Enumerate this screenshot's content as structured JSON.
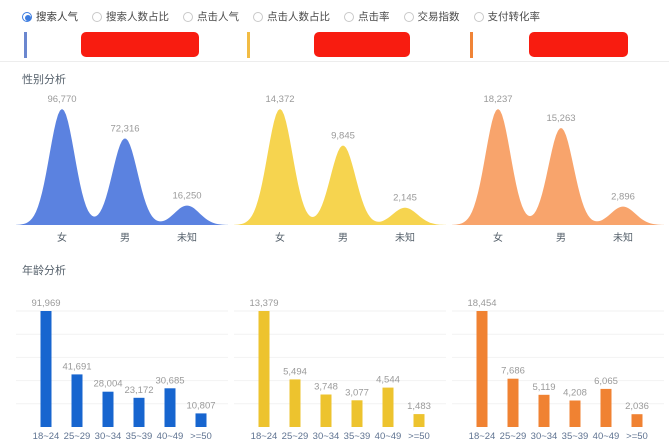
{
  "metrics_bar": {
    "options": [
      {
        "label": "搜索人气",
        "selected": true
      },
      {
        "label": "搜索人数占比",
        "selected": false
      },
      {
        "label": "点击人气",
        "selected": false
      },
      {
        "label": "点击人数占比",
        "selected": false
      },
      {
        "label": "点击率",
        "selected": false
      },
      {
        "label": "交易指数",
        "selected": false
      },
      {
        "label": "支付转化率",
        "selected": false
      }
    ]
  },
  "legend": {
    "redaction_color": "#f81c10",
    "items": [
      {
        "tick_color": "#6b87cf",
        "label_redacted": true
      },
      {
        "tick_color": "#f2bc44",
        "label_redacted": true
      },
      {
        "tick_color": "#f08437",
        "label_redacted": true
      }
    ]
  },
  "sections": {
    "gender": {
      "title": "性别分析"
    },
    "age": {
      "title": "年龄分析"
    }
  },
  "chart_data": [
    {
      "id": "gender-1",
      "type": "area",
      "title": "性别分析 - 系列1",
      "categories": [
        "女",
        "男",
        "未知"
      ],
      "values": [
        96770,
        72316,
        16250
      ],
      "value_labels": [
        "96,770",
        "72,316",
        "16,250"
      ],
      "color": "#5b82e0",
      "grid": false,
      "ylim": [
        0,
        100000
      ]
    },
    {
      "id": "gender-2",
      "type": "area",
      "title": "性别分析 - 系列2",
      "categories": [
        "女",
        "男",
        "未知"
      ],
      "values": [
        14372,
        9845,
        2145
      ],
      "value_labels": [
        "14,372",
        "9,845",
        "2,145"
      ],
      "color": "#f6d44f",
      "grid": false,
      "ylim": [
        0,
        15000
      ]
    },
    {
      "id": "gender-3",
      "type": "area",
      "title": "性别分析 - 系列3",
      "categories": [
        "女",
        "男",
        "未知"
      ],
      "values": [
        18237,
        15263,
        2896
      ],
      "value_labels": [
        "18,237",
        "15,263",
        "2,896"
      ],
      "color": "#f8a46c",
      "grid": false,
      "ylim": [
        0,
        19000
      ]
    },
    {
      "id": "age-1",
      "type": "bar",
      "title": "年龄分析 - 系列1",
      "categories": [
        "18~24",
        "25~29",
        "30~34",
        "35~39",
        "40~49",
        ">=50"
      ],
      "values": [
        91969,
        41691,
        28004,
        23172,
        30685,
        10807
      ],
      "value_labels": [
        "91,969",
        "41,691",
        "28,004",
        "23,172",
        "30,685",
        "10,807"
      ],
      "color": "#1765cf",
      "grid": true,
      "ylim": [
        0,
        95000
      ]
    },
    {
      "id": "age-2",
      "type": "bar",
      "title": "年龄分析 - 系列2",
      "categories": [
        "18~24",
        "25~29",
        "30~34",
        "35~39",
        "40~49",
        ">=50"
      ],
      "values": [
        13379,
        5494,
        3748,
        3077,
        4544,
        1483
      ],
      "value_labels": [
        "13,379",
        "5,494",
        "3,748",
        "3,077",
        "4,544",
        "1,483"
      ],
      "color": "#edc32e",
      "grid": true,
      "ylim": [
        0,
        14000
      ]
    },
    {
      "id": "age-3",
      "type": "bar",
      "title": "年龄分析 - 系列3",
      "categories": [
        "18~24",
        "25~29",
        "30~34",
        "35~39",
        "40~49",
        ">=50"
      ],
      "values": [
        18454,
        7686,
        5119,
        4208,
        6065,
        2036
      ],
      "value_labels": [
        "18,454",
        "7,686",
        "5,119",
        "4,208",
        "6,065",
        "2,036"
      ],
      "color": "#f08232",
      "grid": true,
      "ylim": [
        0,
        19000
      ]
    }
  ]
}
